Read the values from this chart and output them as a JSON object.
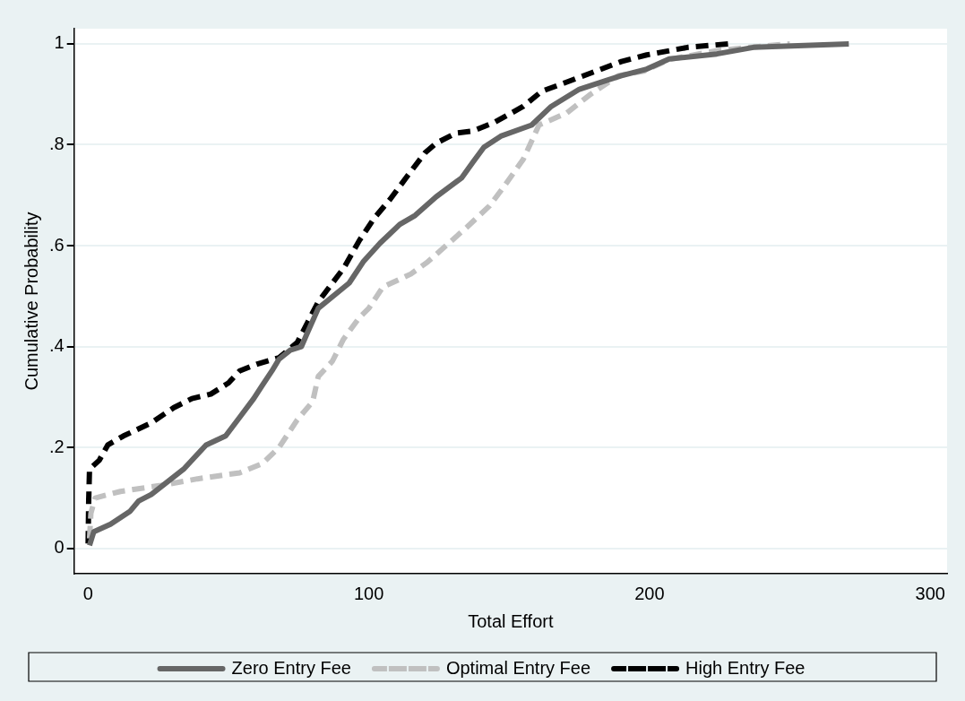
{
  "chart_data": {
    "type": "line",
    "xlabel": "Total Effort",
    "ylabel": "Cumulative Probability",
    "xlim": [
      -5,
      306
    ],
    "ylim": [
      -0.05,
      1.03
    ],
    "xticks": [
      0,
      100,
      200,
      300
    ],
    "yticks": [
      0,
      {
        "value": 0.2,
        "label": ".2"
      },
      {
        "value": 0.4,
        "label": ".4"
      },
      {
        "value": 0.6,
        "label": ".6"
      },
      {
        "value": 0.8,
        "label": ".8"
      },
      1
    ],
    "grid": "y",
    "legend": "bottom",
    "series": [
      {
        "name": "Zero Entry Fee",
        "color": "#666666",
        "line_style": "solid",
        "x": [
          0.5,
          2,
          8,
          15,
          18,
          22.5,
          28,
          34,
          42,
          49,
          54,
          59,
          62,
          65.5,
          68,
          72,
          76,
          78,
          82,
          93,
          98,
          104,
          111,
          116.5,
          124,
          133,
          137,
          141,
          147,
          158,
          165,
          175,
          185,
          190,
          199,
          207,
          224,
          237,
          271
        ],
        "values": [
          0.006,
          0.033,
          0.048,
          0.074,
          0.094,
          0.107,
          0.131,
          0.157,
          0.205,
          0.223,
          0.26,
          0.297,
          0.323,
          0.352,
          0.375,
          0.393,
          0.4,
          0.426,
          0.476,
          0.526,
          0.568,
          0.605,
          0.642,
          0.66,
          0.697,
          0.734,
          0.765,
          0.795,
          0.817,
          0.839,
          0.876,
          0.91,
          0.928,
          0.937,
          0.95,
          0.97,
          0.98,
          0.993,
          1.0
        ]
      },
      {
        "name": "Optimal Entry Fee",
        "color": "#c0c0c0",
        "line_style": "dashed",
        "x": [
          0.5,
          1,
          2.5,
          11.5,
          26,
          39,
          54,
          62,
          68,
          74.5,
          80,
          82,
          87,
          91,
          96.7,
          100,
          105,
          115,
          121,
          127.5,
          135,
          143,
          148,
          155,
          160.6,
          170.5,
          179,
          189,
          198,
          207,
          224.5,
          238,
          250
        ],
        "values": [
          0.02,
          0.07,
          0.1,
          0.113,
          0.125,
          0.138,
          0.15,
          0.168,
          0.2,
          0.255,
          0.291,
          0.341,
          0.371,
          0.415,
          0.458,
          0.476,
          0.518,
          0.544,
          0.568,
          0.6,
          0.637,
          0.679,
          0.716,
          0.771,
          0.839,
          0.863,
          0.9,
          0.937,
          0.946,
          0.969,
          0.987,
          0.994,
          1.0
        ]
      },
      {
        "name": "High Entry Fee",
        "color": "#000000",
        "line_style": "dashed",
        "x": [
          0,
          0.2,
          0.5,
          4,
          7,
          12.6,
          22.5,
          30.5,
          37,
          43.7,
          50,
          54,
          60,
          68,
          74.5,
          82,
          91,
          96.7,
          102,
          107.6,
          114,
          120,
          124,
          131,
          137,
          145,
          155,
          161.6,
          169.5,
          179.5,
          190,
          199,
          213.6,
          228
        ],
        "values": [
          0.01,
          0.094,
          0.157,
          0.175,
          0.205,
          0.223,
          0.249,
          0.279,
          0.297,
          0.306,
          0.328,
          0.352,
          0.365,
          0.378,
          0.408,
          0.489,
          0.555,
          0.611,
          0.655,
          0.692,
          0.74,
          0.784,
          0.803,
          0.823,
          0.827,
          0.845,
          0.876,
          0.906,
          0.922,
          0.943,
          0.965,
          0.978,
          0.993,
          1.0
        ]
      }
    ]
  }
}
